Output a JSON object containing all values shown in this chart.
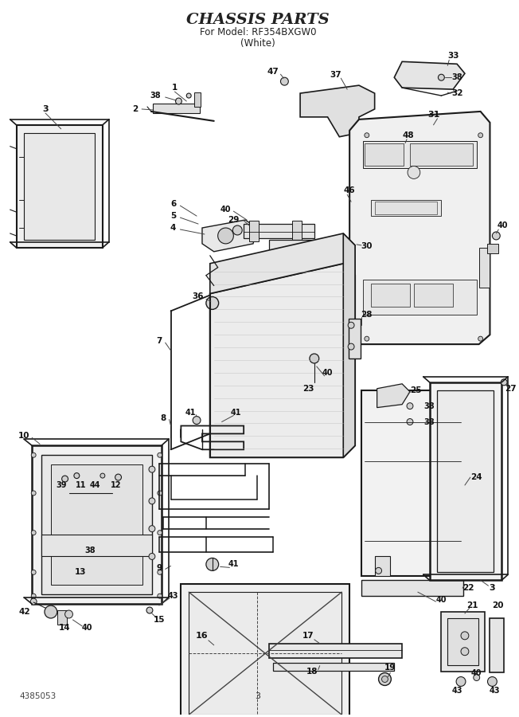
{
  "title_line1": "CHASSIS PARTS",
  "title_line2": "For Model: RF354BXGW0",
  "title_line3": "(White)",
  "page_number": "3",
  "doc_number": "4385053",
  "bg": "#ffffff",
  "lc": "#1a1a1a",
  "lc2": "#444444",
  "tc": "#111111",
  "figsize": [
    6.52,
    9.0
  ],
  "dpi": 100
}
